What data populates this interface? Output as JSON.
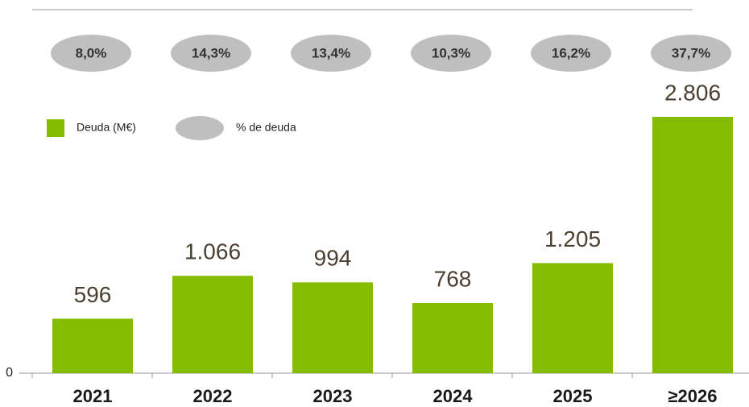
{
  "chart_data": {
    "type": "bar",
    "categories": [
      "2021",
      "2022",
      "2023",
      "2024",
      "2025",
      "≥2026"
    ],
    "series": [
      {
        "name": "Deuda (M€)",
        "color": "#84bd00",
        "values": [
          596,
          1066,
          994,
          768,
          1205,
          2806
        ],
        "value_labels": [
          "596",
          "1.066",
          "994",
          "768",
          "1.205",
          "2.806"
        ]
      },
      {
        "name": "% de deuda",
        "color": "#bfbfbf",
        "values": [
          8.0,
          14.3,
          13.4,
          10.3,
          16.2,
          37.7
        ],
        "value_labels": [
          "8,0%",
          "14,3%",
          "13,4%",
          "10,3%",
          "16,2%",
          "37,7%"
        ]
      }
    ],
    "ylim": [
      0,
      2806
    ],
    "yticks": [
      0
    ]
  }
}
